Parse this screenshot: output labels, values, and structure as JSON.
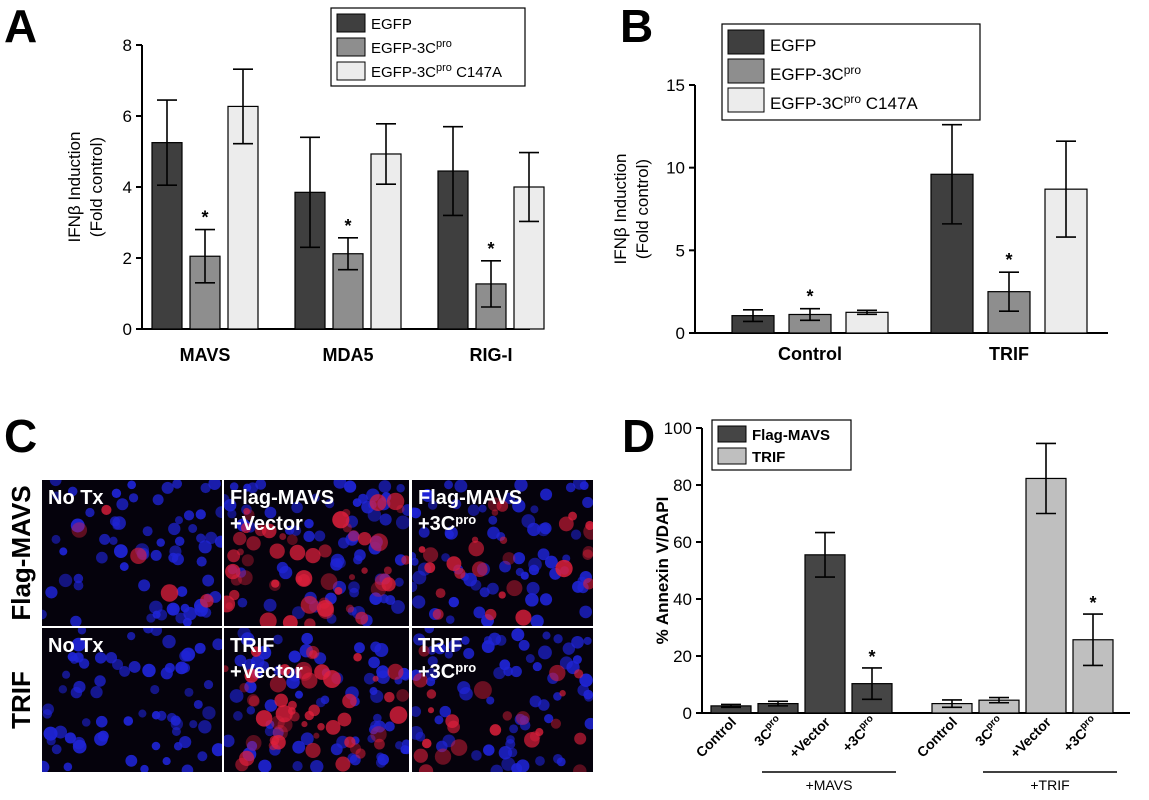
{
  "panel_labels": {
    "a": "A",
    "b": "B",
    "c": "C",
    "d": "D"
  },
  "colors": {
    "dark": "#3f3f3f",
    "mid": "#8e8e8e",
    "light": "#ececec",
    "d_dark": "#454545",
    "d_light": "#bfbfbf",
    "cell_blue": "#1f24d6",
    "cell_red": "#e0203c"
  },
  "chart_data": [
    {
      "id": "A",
      "type": "bar",
      "ylabel_line1": "IFNβ Induction",
      "ylabel_line2": "(Fold control)",
      "ylim": [
        0,
        8
      ],
      "yticks": [
        "0",
        "2",
        "4",
        "6",
        "8"
      ],
      "categories": [
        "MAVS",
        "MDA5",
        "RIG-I"
      ],
      "legend": [
        {
          "base": "EGFP",
          "sup": "",
          "suffix": ""
        },
        {
          "base": "EGFP-3C",
          "sup": "pro",
          "suffix": ""
        },
        {
          "base": "EGFP-3C",
          "sup": "pro",
          "suffix": " C147A"
        }
      ],
      "series": [
        {
          "name": "EGFP",
          "values": [
            5.25,
            3.85,
            4.45
          ],
          "errors": [
            1.2,
            1.55,
            1.25
          ]
        },
        {
          "name": "EGFP-3Cpro",
          "values": [
            2.05,
            2.12,
            1.27
          ],
          "errors": [
            0.75,
            0.45,
            0.65
          ]
        },
        {
          "name": "EGFP-3Cpro C147A",
          "values": [
            6.27,
            4.93,
            4.0
          ],
          "errors": [
            1.05,
            0.85,
            0.97
          ]
        }
      ],
      "significance": "*"
    },
    {
      "id": "B",
      "type": "bar",
      "ylabel_line1": "IFNβ Induction",
      "ylabel_line2": "(Fold control)",
      "ylim": [
        0,
        15
      ],
      "yticks": [
        "0",
        "5",
        "10",
        "15"
      ],
      "categories": [
        "Control",
        "TRIF"
      ],
      "legend": [
        {
          "base": "EGFP",
          "sup": "",
          "suffix": ""
        },
        {
          "base": "EGFP-3C",
          "sup": "pro",
          "suffix": ""
        },
        {
          "base": "EGFP-3C",
          "sup": "pro",
          "suffix": " C147A"
        }
      ],
      "series": [
        {
          "name": "EGFP",
          "values": [
            1.05,
            9.6
          ],
          "errors": [
            0.35,
            3.0
          ]
        },
        {
          "name": "EGFP-3Cpro",
          "values": [
            1.12,
            2.5
          ],
          "errors": [
            0.35,
            1.18
          ]
        },
        {
          "name": "EGFP-3Cpro C147A",
          "values": [
            1.25,
            8.7
          ],
          "errors": [
            0.12,
            2.9
          ]
        }
      ],
      "significance": "*"
    },
    {
      "id": "D",
      "type": "bar",
      "ylabel": "% Annexin V/DAPI",
      "ylim": [
        0,
        100
      ],
      "yticks": [
        "0",
        "20",
        "40",
        "60",
        "80",
        "100"
      ],
      "legend": [
        "Flag-MAVS",
        "TRIF"
      ],
      "groups": [
        {
          "series": "Flag-MAVS",
          "group_label": "+MAVS",
          "bars": [
            {
              "label": "Control",
              "sup": "",
              "value": 2.5,
              "error": 0.5
            },
            {
              "label": "3C",
              "sup": "pro",
              "value": 3.3,
              "error": 0.8
            },
            {
              "label": "+Vector",
              "sup": "",
              "value": 55.5,
              "error": 7.8
            },
            {
              "label": "+3C",
              "sup": "pro",
              "value": 10.3,
              "error": 5.5
            }
          ]
        },
        {
          "series": "TRIF",
          "group_label": "+TRIF",
          "bars": [
            {
              "label": "Control",
              "sup": "",
              "value": 3.3,
              "error": 1.3
            },
            {
              "label": "3C",
              "sup": "pro",
              "value": 4.5,
              "error": 0.9
            },
            {
              "label": "+Vector",
              "sup": "",
              "value": 82.3,
              "error": 12.3
            },
            {
              "label": "+3C",
              "sup": "pro",
              "value": 25.7,
              "error": 9.0
            }
          ]
        }
      ],
      "significance": "*"
    }
  ],
  "panel_c": {
    "row_labels": [
      "Flag-MAVS",
      "TRIF"
    ],
    "cells": [
      {
        "line1": "No Tx",
        "line2": "",
        "line2_sup": "",
        "red_level": 0.08
      },
      {
        "line1": "Flag-MAVS",
        "line2": "+Vector",
        "line2_sup": "",
        "red_level": 0.9
      },
      {
        "line1": "Flag-MAVS",
        "line2": "+3C",
        "line2_sup": "pro",
        "red_level": 0.45
      },
      {
        "line1": "No Tx",
        "line2": "",
        "line2_sup": "",
        "red_level": 0.0
      },
      {
        "line1": "TRIF",
        "line2": "+Vector",
        "line2_sup": "",
        "red_level": 0.85
      },
      {
        "line1": "TRIF",
        "line2": "+3C",
        "line2_sup": "pro",
        "red_level": 0.4
      }
    ]
  }
}
